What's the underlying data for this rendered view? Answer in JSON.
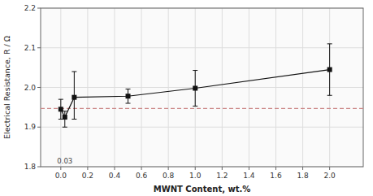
{
  "chart_data": {
    "type": "line",
    "xlabel": "MWNT Content, wt.%",
    "ylabel": "Electrical Resistance, R / Ω",
    "x": [
      0.0,
      0.03,
      0.1,
      0.5,
      1.0,
      2.0
    ],
    "series": [
      {
        "values": [
          1.945,
          1.925,
          1.975,
          1.978,
          1.998,
          2.045
        ],
        "error_upper": [
          0.025,
          0.015,
          0.065,
          0.018,
          0.045,
          0.065
        ],
        "error_lower": [
          0.025,
          0.025,
          0.055,
          0.018,
          0.045,
          0.065
        ],
        "color": "#111111",
        "marker": "square",
        "line_style": "solid"
      }
    ],
    "reference_lines": [
      {
        "value": 1.947,
        "color": "#cc8888",
        "line_style": "dashed"
      }
    ],
    "annotations": [
      {
        "text": "0.03",
        "x": 0.03,
        "y": 1.805
      }
    ],
    "xlim": [
      -0.15,
      2.25
    ],
    "ylim": [
      1.8,
      2.2
    ],
    "xticks": [
      {
        "value": 0.0,
        "label": "0.0"
      },
      0.2,
      0.4,
      0.6,
      0.8,
      {
        "value": 1.0,
        "label": "1.0"
      },
      1.2,
      1.4,
      1.6,
      1.8,
      {
        "value": 2.0,
        "label": "2.0"
      }
    ],
    "yticks": [
      1.8,
      1.9,
      {
        "value": 2.0,
        "label": "2.0"
      },
      2.1,
      2.2
    ],
    "grid": true
  }
}
